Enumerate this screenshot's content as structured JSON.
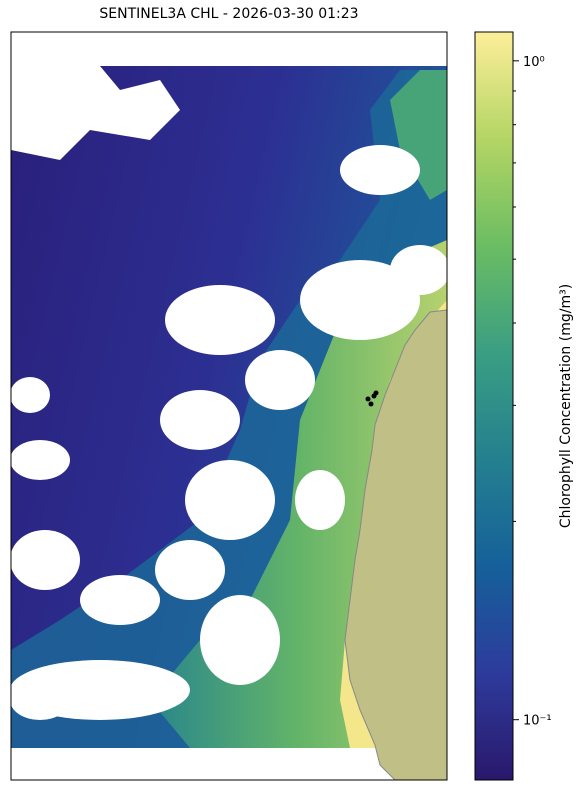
{
  "title": "SENTINEL3A CHL - 2026-03-30 01:23",
  "colorbar": {
    "label": "Chlorophyll Concentration (mg/m³)",
    "scale": "log",
    "lim": [
      0.081,
      1.106
    ],
    "ticks": [
      {
        "value": 0.1,
        "label": "10⁻¹"
      },
      {
        "value": 1,
        "label": "10⁰"
      }
    ],
    "minor_ticks": [
      0.2,
      0.3,
      0.4,
      0.5,
      0.6,
      0.7,
      0.8,
      0.9
    ],
    "colormap": [
      "#2a186c",
      "#2d3b9c",
      "#15609a",
      "#24808f",
      "#3a9e82",
      "#6bbd63",
      "#b4d565",
      "#fdee99"
    ]
  }
}
